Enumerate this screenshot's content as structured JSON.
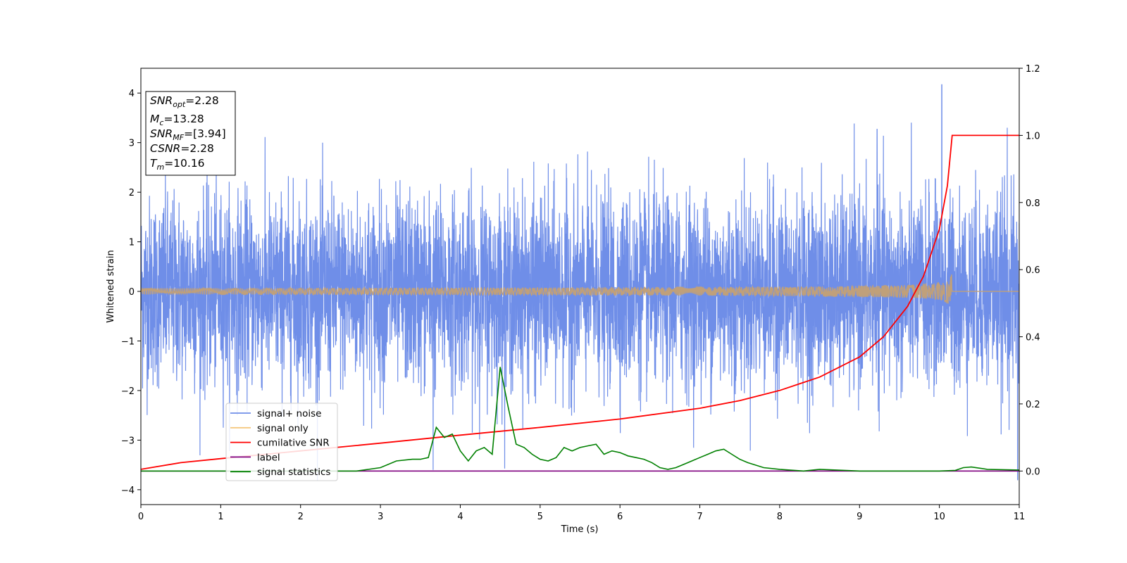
{
  "chart_data": {
    "type": "line",
    "title": "",
    "xlabel": "Time (s)",
    "ylabel": "Whitened strain",
    "y2label": "",
    "xlim": [
      0,
      11
    ],
    "ylim": [
      -4.3,
      4.5
    ],
    "y2lim": [
      -0.1,
      1.2
    ],
    "xticks": [
      "0",
      "1",
      "2",
      "3",
      "4",
      "5",
      "6",
      "7",
      "8",
      "9",
      "10",
      "11"
    ],
    "yticks": [
      "−4",
      "−3",
      "−2",
      "−1",
      "0",
      "1",
      "2",
      "3",
      "4"
    ],
    "y2ticks": [
      "0.0",
      "0.2",
      "0.4",
      "0.6",
      "0.8",
      "1.0",
      "1.2"
    ],
    "grid": false,
    "legend_position": "lower-left",
    "info_box": {
      "lines": [
        {
          "base": "SNR",
          "sub": "opt",
          "value": "=2.28"
        },
        {
          "base": "M",
          "sub": "c",
          "value": "=13.28"
        },
        {
          "base": "SNR",
          "sub": "MF",
          "value": "=[3.94]"
        },
        {
          "base": "CSNR",
          "sub": "",
          "value": "=2.28"
        },
        {
          "base": "T",
          "sub": "m",
          "value": "=10.16"
        }
      ]
    },
    "series": [
      {
        "name": "signal+ noise",
        "color": "#6f8ee8",
        "axis": "left",
        "description_stats": {
          "mean": 0,
          "std": 1.0,
          "min": -3.8,
          "max": 4.17
        },
        "spikes": [
          {
            "x": 3.66,
            "y": -3.6
          },
          {
            "x": 10.03,
            "y": 4.17
          },
          {
            "x": 10.85,
            "y": 3.3
          },
          {
            "x": 9.22,
            "y": 3.27
          },
          {
            "x": 10.98,
            "y": -3.8
          }
        ]
      },
      {
        "name": "signal only",
        "color": "#f5c77e",
        "axis": "left",
        "chirp": {
          "t_merge": 10.16,
          "peak_amplitude": 0.45
        }
      },
      {
        "name": "cumilative SNR",
        "color": "#ff0000",
        "axis": "right",
        "x": [
          0,
          0.5,
          1,
          2,
          3,
          4,
          5,
          6,
          7,
          7.5,
          8,
          8.5,
          9,
          9.3,
          9.6,
          9.8,
          10.0,
          10.1,
          10.16,
          10.2,
          11
        ],
        "y": [
          0.005,
          0.025,
          0.037,
          0.06,
          0.083,
          0.107,
          0.13,
          0.155,
          0.187,
          0.21,
          0.24,
          0.28,
          0.34,
          0.4,
          0.49,
          0.58,
          0.72,
          0.85,
          1.0,
          1.0,
          1.0
        ]
      },
      {
        "name": "label",
        "color": "#800080",
        "axis": "right",
        "x": [
          0,
          11
        ],
        "y": [
          0,
          0
        ]
      },
      {
        "name": "signal statistics",
        "color": "#008000",
        "axis": "right",
        "x": [
          0,
          1,
          2,
          2.7,
          3.0,
          3.2,
          3.4,
          3.5,
          3.6,
          3.7,
          3.8,
          3.9,
          4.0,
          4.1,
          4.2,
          4.3,
          4.4,
          4.5,
          4.6,
          4.7,
          4.8,
          4.9,
          5.0,
          5.1,
          5.2,
          5.3,
          5.4,
          5.5,
          5.6,
          5.7,
          5.8,
          5.9,
          6.0,
          6.1,
          6.2,
          6.3,
          6.4,
          6.5,
          6.6,
          6.7,
          6.8,
          6.9,
          7.0,
          7.1,
          7.2,
          7.3,
          7.4,
          7.5,
          7.6,
          7.8,
          8.0,
          8.3,
          8.5,
          9.0,
          9.5,
          10.0,
          10.2,
          10.3,
          10.4,
          10.6,
          10.8,
          11
        ],
        "y": [
          0.0,
          0.0,
          0.0,
          0.0,
          0.01,
          0.03,
          0.035,
          0.035,
          0.04,
          0.13,
          0.1,
          0.11,
          0.06,
          0.03,
          0.06,
          0.07,
          0.05,
          0.31,
          0.19,
          0.08,
          0.07,
          0.05,
          0.035,
          0.03,
          0.04,
          0.07,
          0.06,
          0.07,
          0.075,
          0.08,
          0.05,
          0.06,
          0.055,
          0.045,
          0.04,
          0.035,
          0.025,
          0.01,
          0.005,
          0.01,
          0.02,
          0.03,
          0.04,
          0.05,
          0.06,
          0.065,
          0.05,
          0.035,
          0.025,
          0.01,
          0.005,
          0.0,
          0.005,
          0.0,
          0.0,
          0.0,
          0.002,
          0.01,
          0.012,
          0.005,
          0.004,
          0.003
        ]
      }
    ]
  }
}
